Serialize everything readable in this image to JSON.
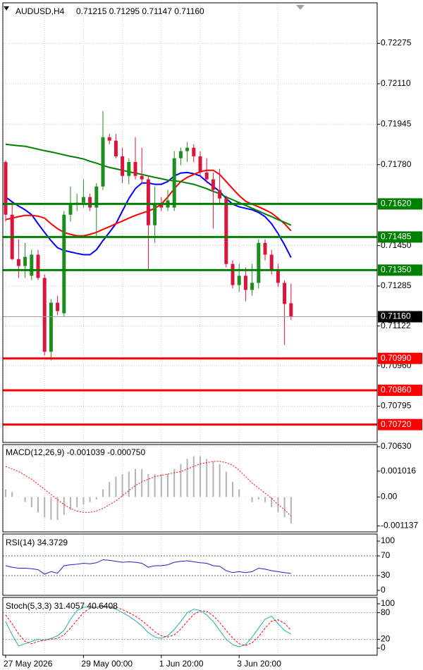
{
  "chart_data": [
    {
      "type": "candlestick",
      "title": "AUDUSD,H4",
      "ohlc_label": "0.71215 0.71295 0.71147 0.71160",
      "categories": [
        "27 May 2026",
        null,
        null,
        null,
        null,
        null,
        null,
        null,
        null,
        null,
        null,
        null,
        "29 May 00:00",
        null,
        null,
        null,
        null,
        null,
        null,
        null,
        null,
        null,
        null,
        null,
        "1 Jun 20:00",
        null,
        null,
        null,
        null,
        null,
        null,
        null,
        null,
        null,
        null,
        null,
        "3 Jun 20:00",
        null,
        null,
        null,
        null,
        null,
        null,
        null,
        null
      ],
      "open": [
        0.71791,
        0.71576,
        0.71395,
        0.71367,
        0.71327,
        0.71413,
        0.71318,
        0.71017,
        0.71217,
        0.71174,
        0.71576,
        0.71619,
        0.71625,
        0.71648,
        0.71605,
        0.71691,
        0.71892,
        0.71878,
        0.71814,
        0.71734,
        0.71791,
        0.71734,
        0.7172,
        0.71533,
        0.71619,
        0.71605,
        0.71605,
        0.71806,
        0.71835,
        0.71849,
        0.71814,
        0.71748,
        0.7172,
        0.71677,
        0.71642,
        0.71375,
        0.71289,
        0.71327,
        0.71269,
        0.71298,
        0.71461,
        0.71413,
        0.71347,
        0.71298,
        0.71215
      ],
      "high": [
        0.71797,
        0.71619,
        0.71476,
        0.71461,
        0.71433,
        0.71433,
        0.71332,
        0.71232,
        0.71246,
        0.71591,
        0.71691,
        0.71662,
        0.7172,
        0.71662,
        0.71705,
        0.71998,
        0.71906,
        0.71906,
        0.71849,
        0.71806,
        0.71892,
        0.71849,
        0.71734,
        0.71691,
        0.71648,
        0.71677,
        0.71835,
        0.71849,
        0.71872,
        0.71863,
        0.71835,
        0.71806,
        0.71748,
        0.71763,
        0.71654,
        0.7139,
        0.71375,
        0.71361,
        0.71375,
        0.71476,
        0.71476,
        0.71433,
        0.71375,
        0.71309,
        0.71295
      ],
      "low": [
        0.71548,
        0.7139,
        0.71318,
        0.71318,
        0.71309,
        0.71309,
        0.71002,
        0.70982,
        0.71166,
        0.7116,
        0.71548,
        0.71591,
        0.71605,
        0.71591,
        0.7149,
        0.71677,
        0.71863,
        0.71806,
        0.71705,
        0.717,
        0.7172,
        0.717,
        0.71347,
        0.71461,
        0.71591,
        0.71591,
        0.71591,
        0.71777,
        0.71791,
        0.71791,
        0.71734,
        0.71705,
        0.71519,
        0.71619,
        0.71361,
        0.71275,
        0.71261,
        0.71223,
        0.71246,
        0.71275,
        0.7139,
        0.71332,
        0.71281,
        0.71045,
        0.71147
      ],
      "close": [
        0.71576,
        0.71395,
        0.71367,
        0.71404,
        0.71413,
        0.71318,
        0.71017,
        0.71217,
        0.71183,
        0.71576,
        0.71619,
        0.71625,
        0.71648,
        0.71605,
        0.71691,
        0.71892,
        0.71878,
        0.71814,
        0.71734,
        0.71791,
        0.71734,
        0.7172,
        0.71533,
        0.71619,
        0.71605,
        0.71634,
        0.71806,
        0.71835,
        0.71849,
        0.71814,
        0.71748,
        0.7172,
        0.71677,
        0.71642,
        0.71375,
        0.71289,
        0.71327,
        0.71269,
        0.71298,
        0.71461,
        0.71413,
        0.71347,
        0.71298,
        0.71212,
        0.7116
      ],
      "up_color": "#1e8c1e",
      "down_color": "#dc143c",
      "lines": [
        {
          "color": "#0000ff",
          "values": [
            0.71648,
            0.71628,
            0.71611,
            0.71596,
            0.71576,
            0.71539,
            0.71504,
            0.7147,
            0.71441,
            0.7143,
            0.71424,
            0.71418,
            0.71413,
            0.71413,
            0.71433,
            0.7147,
            0.71504,
            0.71539,
            0.71591,
            0.71642,
            0.71682,
            0.71705,
            0.71705,
            0.717,
            0.717,
            0.71711,
            0.71734,
            0.71746,
            0.71748,
            0.71743,
            0.71734,
            0.71711,
            0.71691,
            0.71671,
            0.71642,
            0.71619,
            0.71608,
            0.71602,
            0.71596,
            0.71585,
            0.71568,
            0.71539,
            0.71499,
            0.71453,
            0.71401
          ]
        },
        {
          "color": "#ff0000",
          "values": [
            0.71556,
            0.71562,
            0.71568,
            0.71573,
            0.71573,
            0.7157,
            0.71562,
            0.71539,
            0.71519,
            0.71504,
            0.71496,
            0.7149,
            0.7149,
            0.71496,
            0.71504,
            0.71516,
            0.71527,
            0.71539,
            0.7155,
            0.71562,
            0.71573,
            0.71582,
            0.71591,
            0.71602,
            0.71619,
            0.71648,
            0.71682,
            0.71711,
            0.71728,
            0.7174,
            0.71751,
            0.71757,
            0.71757,
            0.7174,
            0.71711,
            0.71682,
            0.71654,
            0.71631,
            0.71619,
            0.71608,
            0.71596,
            0.71582,
            0.71562,
            0.71539,
            0.7151
          ]
        },
        {
          "color": "#008000",
          "values": [
            0.71863,
            0.7186,
            0.71857,
            0.71855,
            0.71849,
            0.71843,
            0.71837,
            0.71832,
            0.71826,
            0.7182,
            0.71814,
            0.71809,
            0.71803,
            0.71794,
            0.71786,
            0.71777,
            0.71769,
            0.71763,
            0.71757,
            0.71751,
            0.71746,
            0.7174,
            0.71734,
            0.71728,
            0.71723,
            0.71717,
            0.71714,
            0.71711,
            0.71705,
            0.717,
            0.71691,
            0.71682,
            0.71671,
            0.71662,
            0.71648,
            0.71637,
            0.71625,
            0.71614,
            0.71602,
            0.71591,
            0.71579,
            0.71568,
            0.71556,
            0.71545,
            0.71533
          ]
        }
      ],
      "ylim": [
        0.7063,
        0.7244
      ],
      "yticks": [
        0.72275,
        {
          "value": 0.7211,
          "label": "0.72110"
        },
        0.71945,
        {
          "value": 0.7178,
          "label": "0.71780"
        },
        {
          "value": 0.7145,
          "label": "0.71450"
        },
        0.71285,
        0.71122,
        {
          "value": 0.7096,
          "label": "0.70960"
        },
        0.70795,
        {
          "value": 0.7063,
          "label": "0.70630"
        }
      ],
      "grid": true,
      "levels": [
        {
          "value": 0.7162,
          "label": "0.71620",
          "color": "#008000"
        },
        {
          "value": 0.71485,
          "color": "#008000"
        },
        {
          "value": 0.7135,
          "label": "0.71350",
          "color": "#008000"
        },
        {
          "value": 0.7099,
          "label": "0.70990",
          "color": "#ff0000"
        },
        {
          "value": 0.7086,
          "label": "0.70860",
          "color": "#ff0000"
        },
        {
          "value": 0.7072,
          "label": "0.70720",
          "color": "#ff0000"
        }
      ],
      "last_price": {
        "value": 0.7116,
        "label": "0.71160"
      }
    },
    {
      "type": "macd",
      "title": "MACD(12,26,9) -0.001039 -0.000750",
      "histogram": {
        "color": "#b4b4b4",
        "values": [
          0.0003,
          0.0002,
          0,
          -0.0002,
          -0.0004,
          -0.0006,
          -0.0008,
          -0.0009,
          -0.0009,
          -0.0007,
          -0.0005,
          -0.0004,
          -0.0003,
          -0.0002,
          -0.0001,
          0.0003,
          0.0006,
          0.0008,
          0.0009,
          0.001,
          0.0011,
          0.0011,
          0.0009,
          0.0009,
          0.0009,
          0.0009,
          0.0011,
          0.0013,
          0.0015,
          0.0016,
          0.0016,
          0.0015,
          0.0014,
          0.0013,
          0.001,
          0.0006,
          0.0003,
          0,
          -0.0002,
          -0.0001,
          -0.0002,
          -0.0004,
          -0.0006,
          -0.0008,
          -0.001039
        ]
      },
      "signal": {
        "color": "#ff0000",
        "dash": true,
        "values": [
          0.0012,
          0.0011,
          0.001,
          0.00085,
          0.0007,
          0.0005,
          0.0003,
          0.0001,
          -0.0001,
          -0.0003,
          -0.00045,
          -0.00055,
          -0.0006,
          -0.0006,
          -0.00055,
          -0.00045,
          -0.0003,
          -0.00015,
          5e-05,
          0.00025,
          0.00045,
          0.0006,
          0.0007,
          0.0008,
          0.00085,
          0.0009,
          0.00095,
          0.001,
          0.0011,
          0.0012,
          0.0013,
          0.00135,
          0.0014,
          0.0014,
          0.00135,
          0.00125,
          0.00105,
          0.0008,
          0.00055,
          0.00035,
          0.00015,
          -5e-05,
          -0.0003,
          -0.0005,
          -0.00075
        ]
      },
      "ylim": [
        -0.00137,
        0.00206
      ],
      "yticks": [
        0.001016,
        {
          "value": 0,
          "label": "0.00"
        },
        -0.001137
      ]
    },
    {
      "type": "line",
      "title": "RSI(14) 34.3729",
      "series": [
        {
          "color": "#2020d0",
          "values": [
            50,
            47,
            45,
            45,
            44,
            42,
            33,
            38,
            35,
            50,
            52,
            53,
            55,
            54,
            56,
            62,
            61,
            59,
            57,
            58,
            57,
            55,
            47,
            50,
            50,
            52,
            57,
            59,
            60,
            58,
            56,
            55,
            50,
            49,
            40,
            36,
            38,
            36,
            38,
            45,
            43,
            40,
            38,
            36,
            34.3729
          ]
        }
      ],
      "levels": [
        70,
        30
      ],
      "level_color": "#3c8c3c",
      "ylim": [
        0,
        100
      ],
      "yticks": [
        100,
        70,
        30,
        0
      ]
    },
    {
      "type": "line",
      "title": "Stoch(5,3,3) 31.4057 40.6408",
      "series": [
        {
          "color": "#20b2aa",
          "values": [
            60,
            30,
            5,
            10,
            15,
            20,
            18,
            22,
            28,
            40,
            65,
            85,
            92,
            93,
            92,
            95,
            92,
            88,
            80,
            72,
            62,
            50,
            35,
            25,
            22,
            28,
            42,
            60,
            80,
            88,
            85,
            75,
            60,
            40,
            20,
            8,
            3,
            8,
            25,
            45,
            65,
            72,
            55,
            40,
            31.4057
          ]
        },
        {
          "color": "#ff0000",
          "dash": true,
          "values": [
            75,
            55,
            32,
            15,
            10,
            15,
            18,
            20,
            22,
            30,
            45,
            63,
            80,
            90,
            92,
            93,
            93,
            92,
            87,
            80,
            72,
            62,
            50,
            37,
            28,
            25,
            30,
            43,
            60,
            76,
            84,
            83,
            73,
            58,
            40,
            23,
            10,
            6,
            12,
            26,
            45,
            61,
            64,
            56,
            40.6408
          ]
        }
      ],
      "levels": [
        80,
        20
      ],
      "level_color": "#a0a0a0",
      "ylim": [
        0,
        100
      ],
      "yticks": [
        100,
        80,
        20,
        0
      ]
    }
  ]
}
